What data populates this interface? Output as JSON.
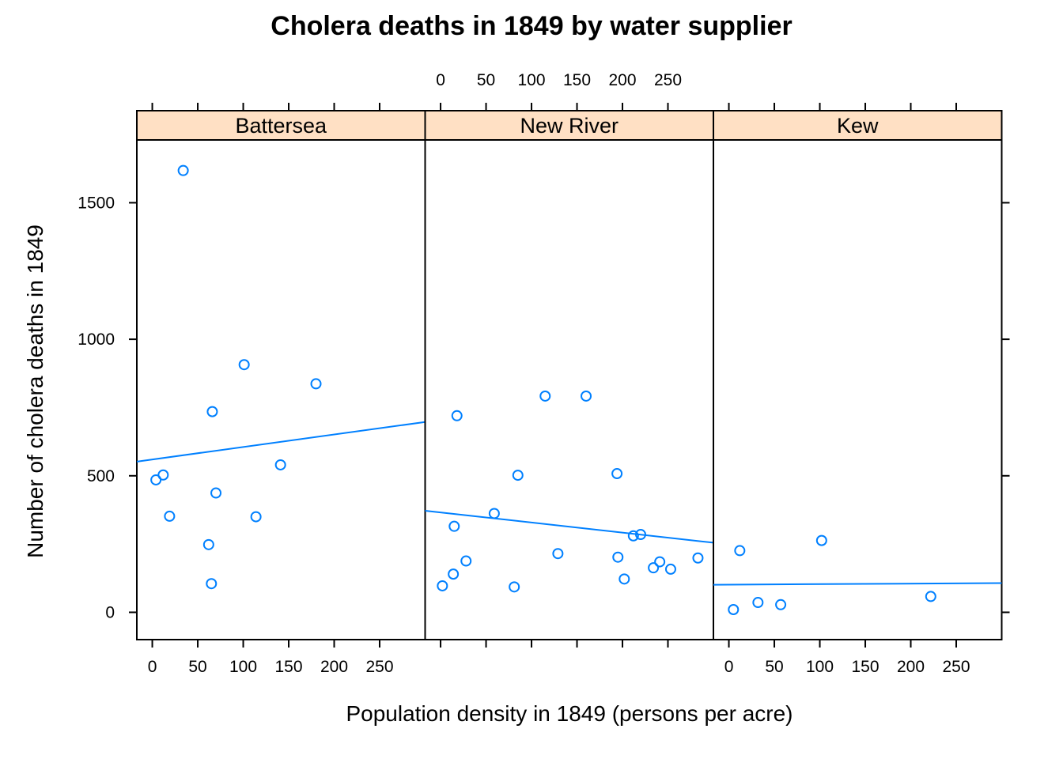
{
  "chart_data": {
    "type": "scatter",
    "title": "Cholera deaths in 1849 by water supplier",
    "xlabel": "Population density in 1849 (persons per acre)",
    "ylabel": "Number of cholera deaths in 1849",
    "xlim": [
      -17,
      300
    ],
    "ylim": [
      -100,
      1730
    ],
    "x_ticks": [
      0,
      50,
      100,
      150,
      200,
      250
    ],
    "y_ticks": [
      0,
      500,
      1000,
      1500
    ],
    "point_color": "#0080ff",
    "strip_color": "#ffe0c4",
    "layout": "1 row x 3 panels, shared y axis; y ticks labelled on left, x tick labels alternate bottom/top",
    "panels": [
      {
        "name": "Battersea",
        "points": [
          {
            "x": 4,
            "y": 485
          },
          {
            "x": 12,
            "y": 503
          },
          {
            "x": 19,
            "y": 352
          },
          {
            "x": 34,
            "y": 1618
          },
          {
            "x": 62,
            "y": 248
          },
          {
            "x": 65,
            "y": 105
          },
          {
            "x": 66,
            "y": 735
          },
          {
            "x": 70,
            "y": 437
          },
          {
            "x": 101,
            "y": 907
          },
          {
            "x": 114,
            "y": 350
          },
          {
            "x": 141,
            "y": 540
          },
          {
            "x": 180,
            "y": 837
          }
        ],
        "fit": {
          "x": [
            -17,
            300
          ],
          "y": [
            552,
            697
          ]
        }
      },
      {
        "name": "New River",
        "points": [
          {
            "x": 2,
            "y": 97
          },
          {
            "x": 14,
            "y": 140
          },
          {
            "x": 15,
            "y": 315
          },
          {
            "x": 18,
            "y": 720
          },
          {
            "x": 28,
            "y": 188
          },
          {
            "x": 59,
            "y": 362
          },
          {
            "x": 81,
            "y": 93
          },
          {
            "x": 85,
            "y": 502
          },
          {
            "x": 115,
            "y": 792
          },
          {
            "x": 129,
            "y": 215
          },
          {
            "x": 160,
            "y": 792
          },
          {
            "x": 194,
            "y": 508
          },
          {
            "x": 195,
            "y": 202
          },
          {
            "x": 202,
            "y": 122
          },
          {
            "x": 212,
            "y": 280
          },
          {
            "x": 220,
            "y": 285
          },
          {
            "x": 234,
            "y": 163
          },
          {
            "x": 241,
            "y": 185
          },
          {
            "x": 253,
            "y": 158
          },
          {
            "x": 283,
            "y": 199
          }
        ],
        "fit": {
          "x": [
            -17,
            300
          ],
          "y": [
            372,
            255
          ]
        }
      },
      {
        "name": "Kew",
        "points": [
          {
            "x": 5,
            "y": 10
          },
          {
            "x": 12,
            "y": 226
          },
          {
            "x": 32,
            "y": 36
          },
          {
            "x": 57,
            "y": 28
          },
          {
            "x": 102,
            "y": 263
          },
          {
            "x": 222,
            "y": 58
          }
        ],
        "fit": {
          "x": [
            -17,
            300
          ],
          "y": [
            101,
            107
          ]
        }
      }
    ]
  }
}
